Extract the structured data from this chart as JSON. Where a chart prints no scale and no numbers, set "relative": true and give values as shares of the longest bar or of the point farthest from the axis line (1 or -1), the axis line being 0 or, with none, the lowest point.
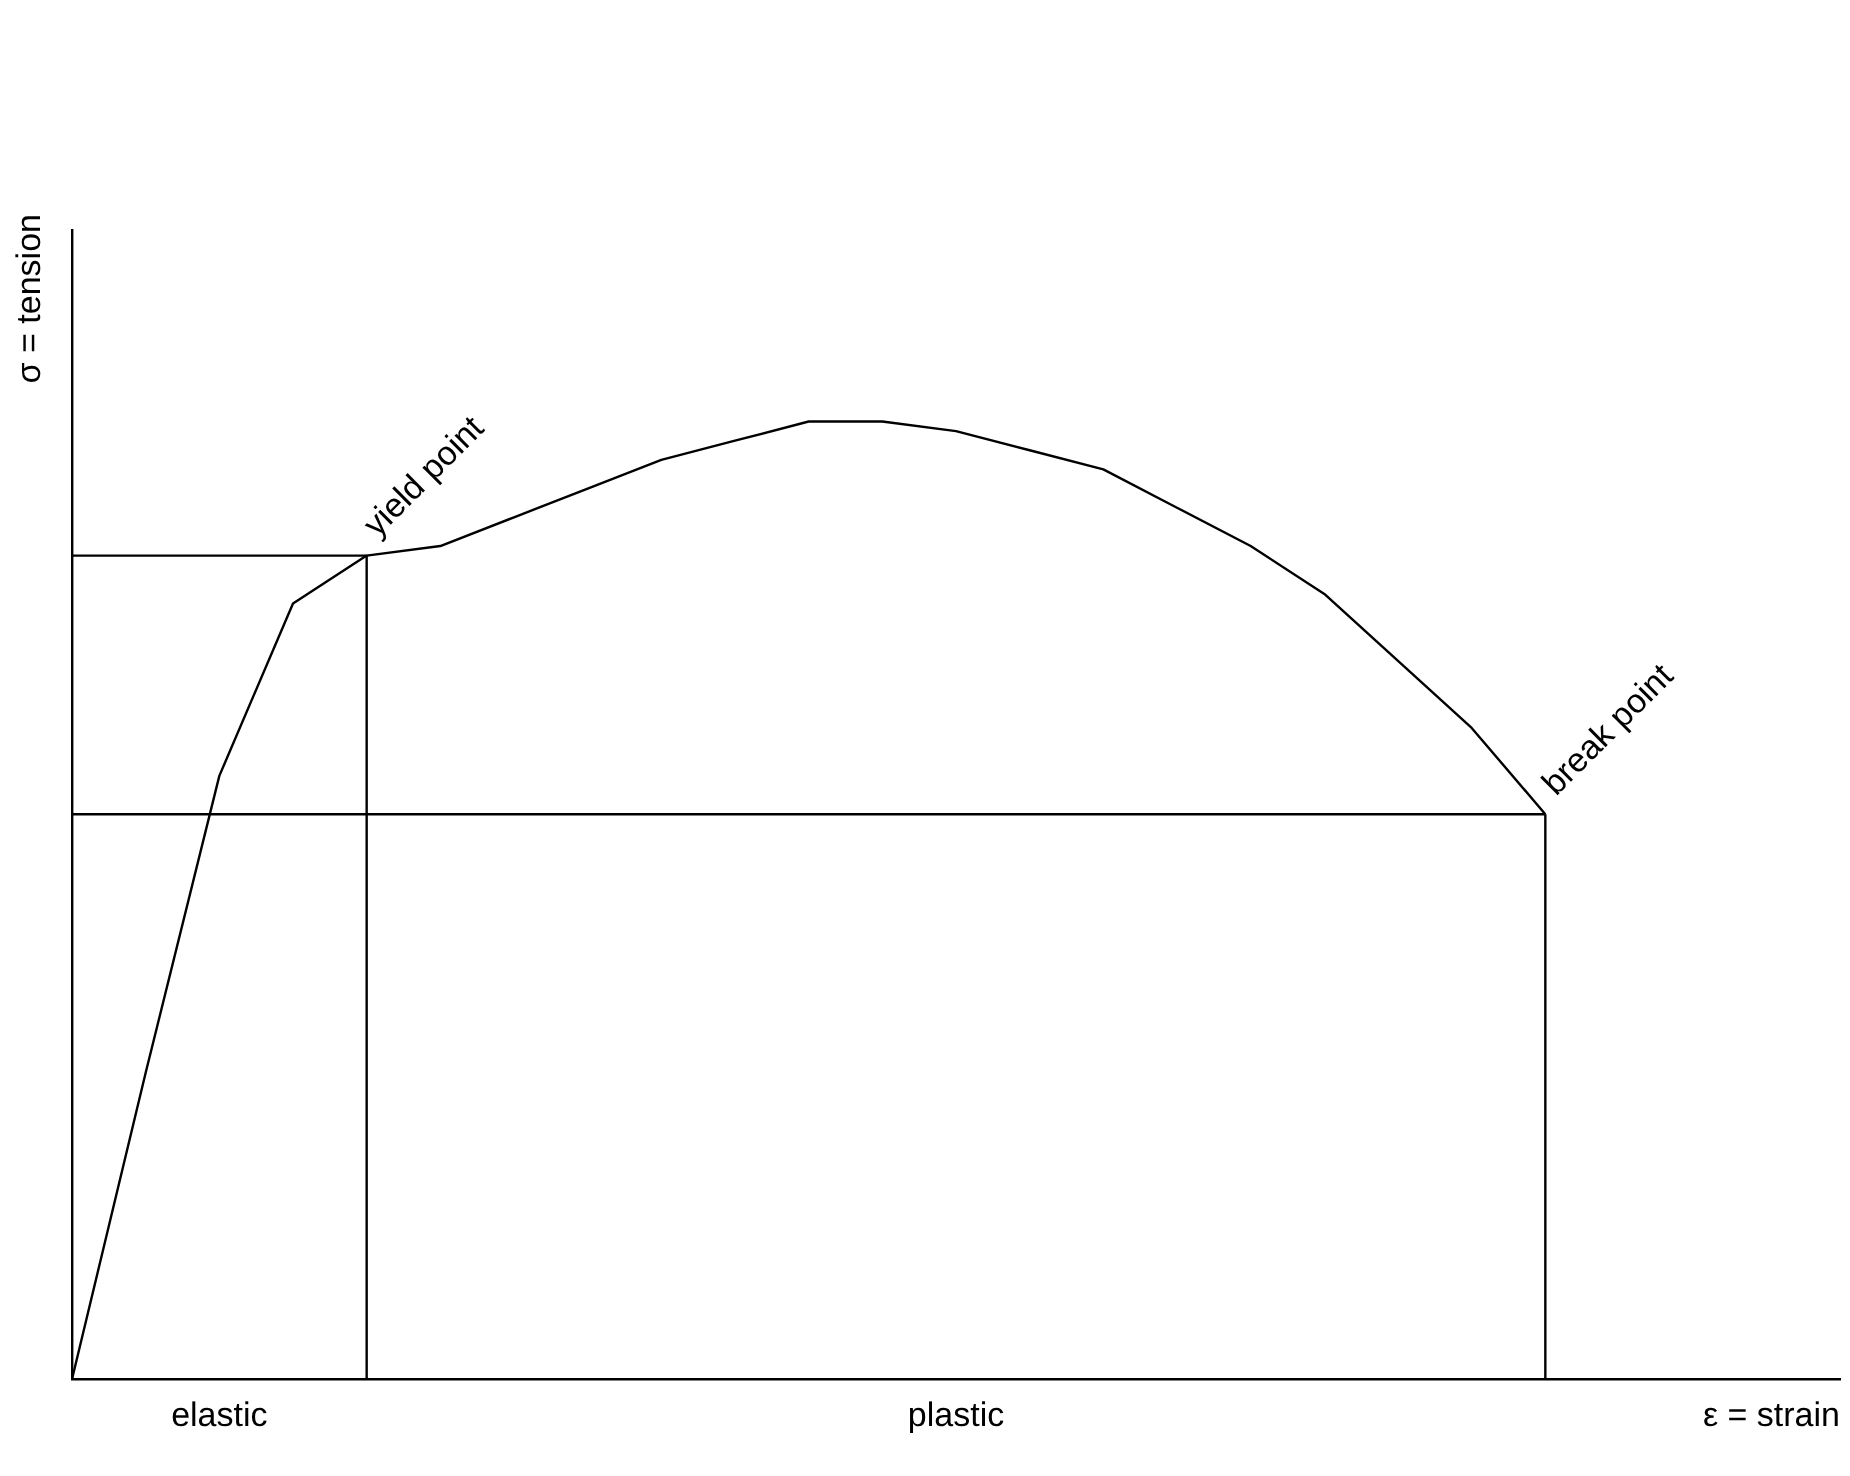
{
  "chart_data": {
    "type": "line",
    "relative": true,
    "xlabel": "ε = strain",
    "ylabel": "σ = tension",
    "grid": false,
    "legend": false,
    "marker": "none",
    "line_style": "solid",
    "categories": [
      null,
      null,
      null,
      null,
      null,
      null,
      null,
      null,
      null,
      null,
      null,
      null,
      null,
      null,
      null,
      null,
      null,
      null,
      null,
      null,
      null,
      null,
      null,
      null,
      null
    ],
    "series": [
      {
        "color": "#000000",
        "values": [
          0,
          0.32,
          0.63,
          0.81,
          0.86,
          0.87,
          0.9,
          0.93,
          0.96,
          0.98,
          1.0,
          1.0,
          0.99,
          0.97,
          0.95,
          0.91,
          0.87,
          0.82,
          0.75,
          0.68,
          0.59,
          null,
          null,
          null,
          null
        ]
      },
      {
        "color": "#000000",
        "values": [
          0.86,
          0.86,
          0.86,
          0.86,
          0.86,
          null,
          null,
          null,
          null,
          null,
          null,
          null,
          null,
          null,
          null,
          null,
          null,
          null,
          null,
          null,
          null,
          null,
          null,
          null,
          null
        ]
      },
      {
        "color": "#000000",
        "values": [
          0.59,
          0.59,
          0.59,
          0.59,
          0.59,
          0.59,
          0.59,
          0.59,
          0.59,
          0.59,
          0.59,
          0.59,
          0.59,
          0.59,
          0.59,
          0.59,
          0.59,
          0.59,
          0.59,
          0.59,
          0.59,
          null,
          null,
          null,
          null
        ]
      }
    ],
    "annotations": [
      "yield point",
      "break point",
      "elastic",
      "plastic"
    ]
  }
}
